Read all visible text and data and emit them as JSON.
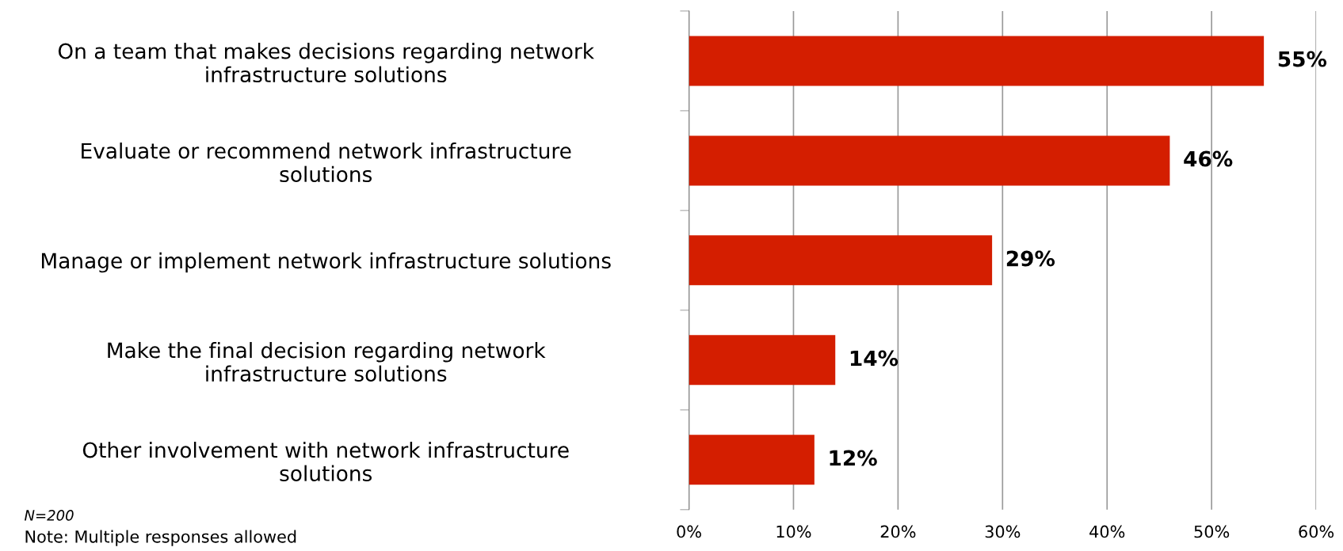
{
  "chart_data": {
    "type": "bar",
    "orientation": "horizontal",
    "categories": [
      "On a team that makes decisions regarding network\ninfrastructure solutions",
      "Evaluate or recommend network infrastructure\nsolutions",
      "Manage or implement network infrastructure solutions",
      "Make the final decision regarding network\ninfrastructure solutions",
      "Other involvement with network infrastructure\nsolutions"
    ],
    "values": [
      55,
      46,
      29,
      14,
      12
    ],
    "color": "#d41e00",
    "value_labels": [
      "55%",
      "46%",
      "29%",
      "14%",
      "12%"
    ],
    "xlim": [
      0,
      60
    ],
    "xticks": [
      {
        "value": 0,
        "label": "0%"
      },
      {
        "value": 10,
        "label": "10%"
      },
      {
        "value": 20,
        "label": "20%"
      },
      {
        "value": 30,
        "label": "30%"
      },
      {
        "value": 40,
        "label": "40%"
      },
      {
        "value": 50,
        "label": "50%"
      },
      {
        "value": 60,
        "label": "60%"
      }
    ],
    "grid": "x",
    "annotations": [
      "N=200",
      "Note: Multiple responses allowed"
    ]
  }
}
